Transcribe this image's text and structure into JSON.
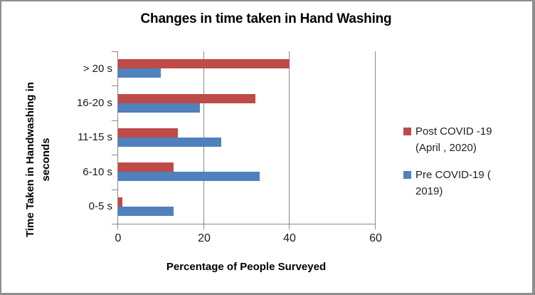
{
  "window": {
    "title": "Changes in time taken in Hand Washing"
  },
  "chart_data": {
    "type": "bar",
    "orientation": "horizontal",
    "title": "Changes in time taken in Hand Washing",
    "xlabel": "Percentage of People Surveyed",
    "ylabel": "Time Taken in Handwashing in seconds",
    "ylabel_lines": [
      "Time Taken in Handwashing in",
      "seconds"
    ],
    "categories_top_to_bottom": [
      "> 20 s",
      "16-20 s",
      "11-15 s",
      "6-10 s",
      "0-5 s"
    ],
    "series": [
      {
        "name": "Post COVID -19 (April , 2020)",
        "legend_lines": [
          "Post COVID -19",
          "(April , 2020)"
        ],
        "color": "#BE4B48",
        "values": [
          40,
          32,
          14,
          13,
          1
        ]
      },
      {
        "name": "Pre COVID-19 ( 2019)",
        "legend_lines": [
          "Pre COVID-19 (",
          "2019)"
        ],
        "color": "#4F81BD",
        "values": [
          10,
          19,
          24,
          33,
          13
        ]
      }
    ],
    "xlim": [
      0,
      60
    ],
    "xticks": [
      0,
      20,
      40,
      60
    ],
    "grid": true,
    "legend_position": "right",
    "colors": {
      "gridline": "#8a8a8a",
      "axis": "#8a8a8a",
      "frame": "#8e8e8e"
    }
  }
}
